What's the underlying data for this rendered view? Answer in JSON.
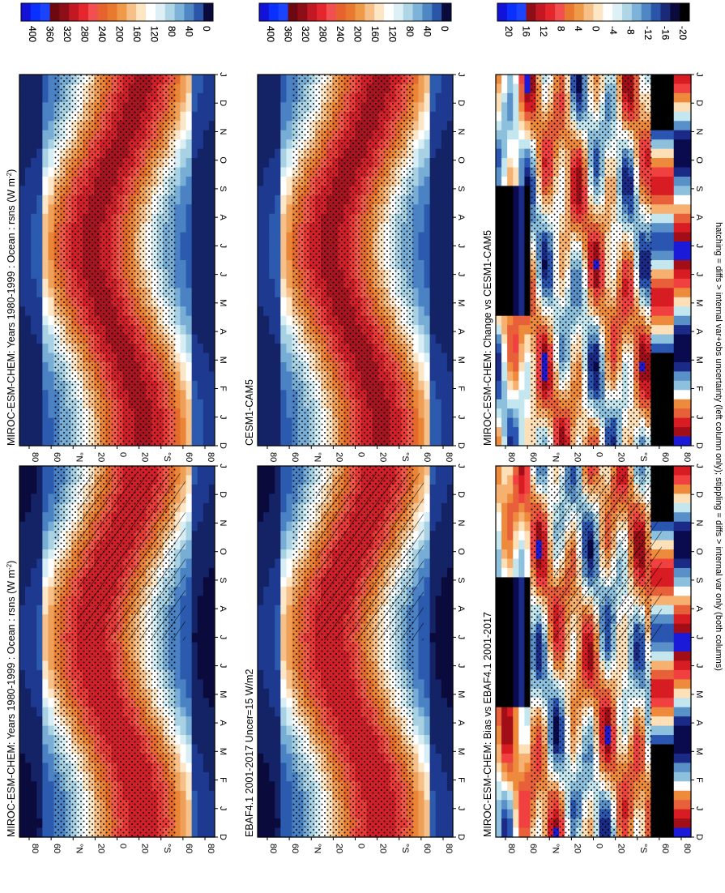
{
  "figure": {
    "footnote": "hatching = diffs > internal var+obs uncertainty (left column only); stippling = diffs > internal var only (both columns)",
    "orientation": "rotated 90 degrees clockwise"
  },
  "colors": {
    "abs": [
      "#0a0a3c",
      "#1a2a78",
      "#2a55a8",
      "#4e87c4",
      "#7db3d8",
      "#aed6e6",
      "#ddf0f6",
      "#ffffff",
      "#fde6c4",
      "#f7c088",
      "#ee9a48",
      "#e8792f",
      "#e6632e",
      "#f25050",
      "#e5262c",
      "#c21824",
      "#8e0e18",
      "#6e0810",
      "#1010d0",
      "#0c20f0",
      "#1a44ff"
    ],
    "diff": [
      "#000000",
      "#0a0a4e",
      "#1a2a86",
      "#2a55b0",
      "#5a90c8",
      "#8cc0dc",
      "#c4e6ee",
      "#ffffff",
      "#fde0b8",
      "#f6b070",
      "#ee8a3c",
      "#e8603a",
      "#f04040",
      "#d81c24",
      "#a20e18",
      "#1a1ad8",
      "#0a30ff"
    ]
  },
  "chart_data": [
    {
      "type": "heatmap",
      "panel": "top-left",
      "title": "MIROC-ESM-CHEM: Years 1980-1999 : Ocean : rsns (W m",
      "title_sup": "-2",
      "title_close": ")",
      "field": "rsns",
      "units": "W m-2",
      "x_ticks": [
        "D",
        "J",
        "F",
        "M",
        "A",
        "M",
        "J",
        "J",
        "A",
        "S",
        "O",
        "N",
        "D",
        "J"
      ],
      "y_ticks": [
        "80",
        "60",
        "°N",
        "20",
        "0",
        "20",
        "°S",
        "60",
        "80"
      ],
      "colorbar": {
        "labels": [
          "400",
          "360",
          "320",
          "280",
          "240",
          "200",
          "160",
          "120",
          "80",
          "40",
          "0"
        ],
        "min": 0,
        "max": 400,
        "step": 20
      },
      "overlay": [
        "stippling",
        "hatching"
      ]
    },
    {
      "type": "heatmap",
      "panel": "top-right",
      "title": "MIROC-ESM-CHEM: Years 1980-1999 : Ocean : rsns (W m",
      "title_sup": "-2",
      "title_close": ")",
      "field": "rsns",
      "x_ticks": [
        "D",
        "J",
        "F",
        "M",
        "A",
        "M",
        "J",
        "J",
        "A",
        "S",
        "O",
        "N",
        "D",
        "J"
      ],
      "y_ticks": [
        "80",
        "60",
        "°N",
        "20",
        "0",
        "20",
        "°S",
        "60",
        "80"
      ],
      "colorbar": {
        "labels": [
          "400",
          "360",
          "320",
          "280",
          "240",
          "200",
          "160",
          "120",
          "80",
          "40",
          "0"
        ],
        "min": 0,
        "max": 400,
        "step": 20
      },
      "overlay": [
        "stippling"
      ]
    },
    {
      "type": "heatmap",
      "panel": "middle-left",
      "title": "EBAF4.1 2001-2017 Uncer=15 W/m2",
      "x_ticks": [
        "D",
        "J",
        "F",
        "M",
        "A",
        "M",
        "J",
        "J",
        "A",
        "S",
        "O",
        "N",
        "D",
        "J"
      ],
      "y_ticks": [
        "80",
        "60",
        "°N",
        "20",
        "0",
        "20",
        "°S",
        "60",
        "80"
      ],
      "colorbar": {
        "labels": [
          "400",
          "360",
          "320",
          "280",
          "240",
          "200",
          "160",
          "120",
          "80",
          "40",
          "0"
        ],
        "min": 0,
        "max": 400,
        "step": 20
      },
      "overlay": [
        "stippling",
        "hatching"
      ]
    },
    {
      "type": "heatmap",
      "panel": "middle-right",
      "title": "CESM1-CAM5",
      "x_ticks": [
        "D",
        "J",
        "F",
        "M",
        "A",
        "M",
        "J",
        "J",
        "A",
        "S",
        "O",
        "N",
        "D",
        "J"
      ],
      "y_ticks": [
        "80",
        "60",
        "°N",
        "20",
        "0",
        "20",
        "°S",
        "60",
        "80"
      ],
      "colorbar": {
        "labels": [
          "400",
          "360",
          "320",
          "280",
          "240",
          "200",
          "160",
          "120",
          "80",
          "40",
          "0"
        ],
        "min": 0,
        "max": 400,
        "step": 20
      },
      "overlay": [
        "stippling"
      ]
    },
    {
      "type": "heatmap",
      "panel": "bottom-left",
      "title": "MIROC-ESM-CHEM: Bias vs EBAF4.1 2001-2017",
      "x_ticks": [
        "D",
        "J",
        "F",
        "M",
        "A",
        "M",
        "J",
        "J",
        "A",
        "S",
        "O",
        "N",
        "D",
        "J"
      ],
      "y_ticks": [
        "80",
        "60",
        "°N",
        "20",
        "0",
        "20",
        "°S",
        "60",
        "80"
      ],
      "colorbar": {
        "labels": [
          "20",
          "16",
          "12",
          "8",
          "4",
          "0",
          "-4",
          "-8",
          "-12",
          "-16",
          "-20"
        ],
        "min": -20,
        "max": 20,
        "step": 2
      },
      "overlay": [
        "stippling",
        "hatching"
      ]
    },
    {
      "type": "heatmap",
      "panel": "bottom-right",
      "title": "MIROC-ESM-CHEM: Change vs CESM1-CAM5",
      "x_ticks": [
        "D",
        "J",
        "F",
        "M",
        "A",
        "M",
        "J",
        "J",
        "A",
        "S",
        "O",
        "N",
        "D",
        "J"
      ],
      "y_ticks": [
        "80",
        "60",
        "°N",
        "20",
        "0",
        "20",
        "°S",
        "60",
        "80"
      ],
      "colorbar": {
        "labels": [
          "20",
          "16",
          "12",
          "8",
          "4",
          "0",
          "-4",
          "-8",
          "-12",
          "-16",
          "-20"
        ],
        "min": -20,
        "max": 20,
        "step": 2
      },
      "overlay": [
        "stippling"
      ]
    }
  ]
}
